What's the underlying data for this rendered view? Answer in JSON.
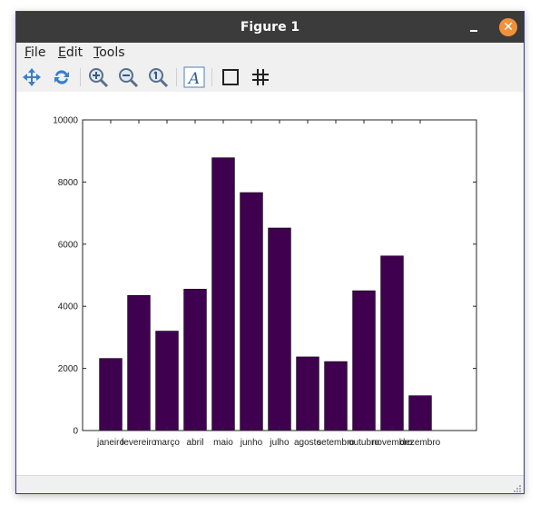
{
  "window": {
    "title": "Figure 1"
  },
  "menu": {
    "file": "File",
    "edit": "Edit",
    "tools": "Tools",
    "file_key": "F",
    "file_rest": "ile",
    "edit_key": "E",
    "edit_rest": "dit",
    "tools_key": "T",
    "tools_rest": "ools"
  },
  "toolbar": {
    "icons": [
      "pan-icon",
      "autoscale-icon",
      "zoom-in-icon",
      "zoom-out-icon",
      "zoom-reset-icon",
      "text-icon",
      "box-icon",
      "grid-icon"
    ]
  },
  "colors": {
    "bar": "#400050",
    "close": "#f2913a",
    "titlebar": "#3b3b3b"
  },
  "chart_data": {
    "type": "bar",
    "title": "",
    "xlabel": "",
    "ylabel": "",
    "categories": [
      "janeiro",
      "fevereiro",
      "março",
      "abril",
      "maio",
      "junho",
      "julho",
      "agosto",
      "setembro",
      "outubro",
      "novembro",
      "dezembro"
    ],
    "values": [
      2320,
      4350,
      3200,
      4550,
      8780,
      7660,
      6520,
      2370,
      2220,
      4500,
      5620,
      1120
    ],
    "ylim": [
      0,
      10000
    ],
    "yticks": [
      0,
      2000,
      4000,
      6000,
      8000,
      10000
    ],
    "xlim": [
      0,
      14
    ],
    "grid": false,
    "legend": "none"
  }
}
